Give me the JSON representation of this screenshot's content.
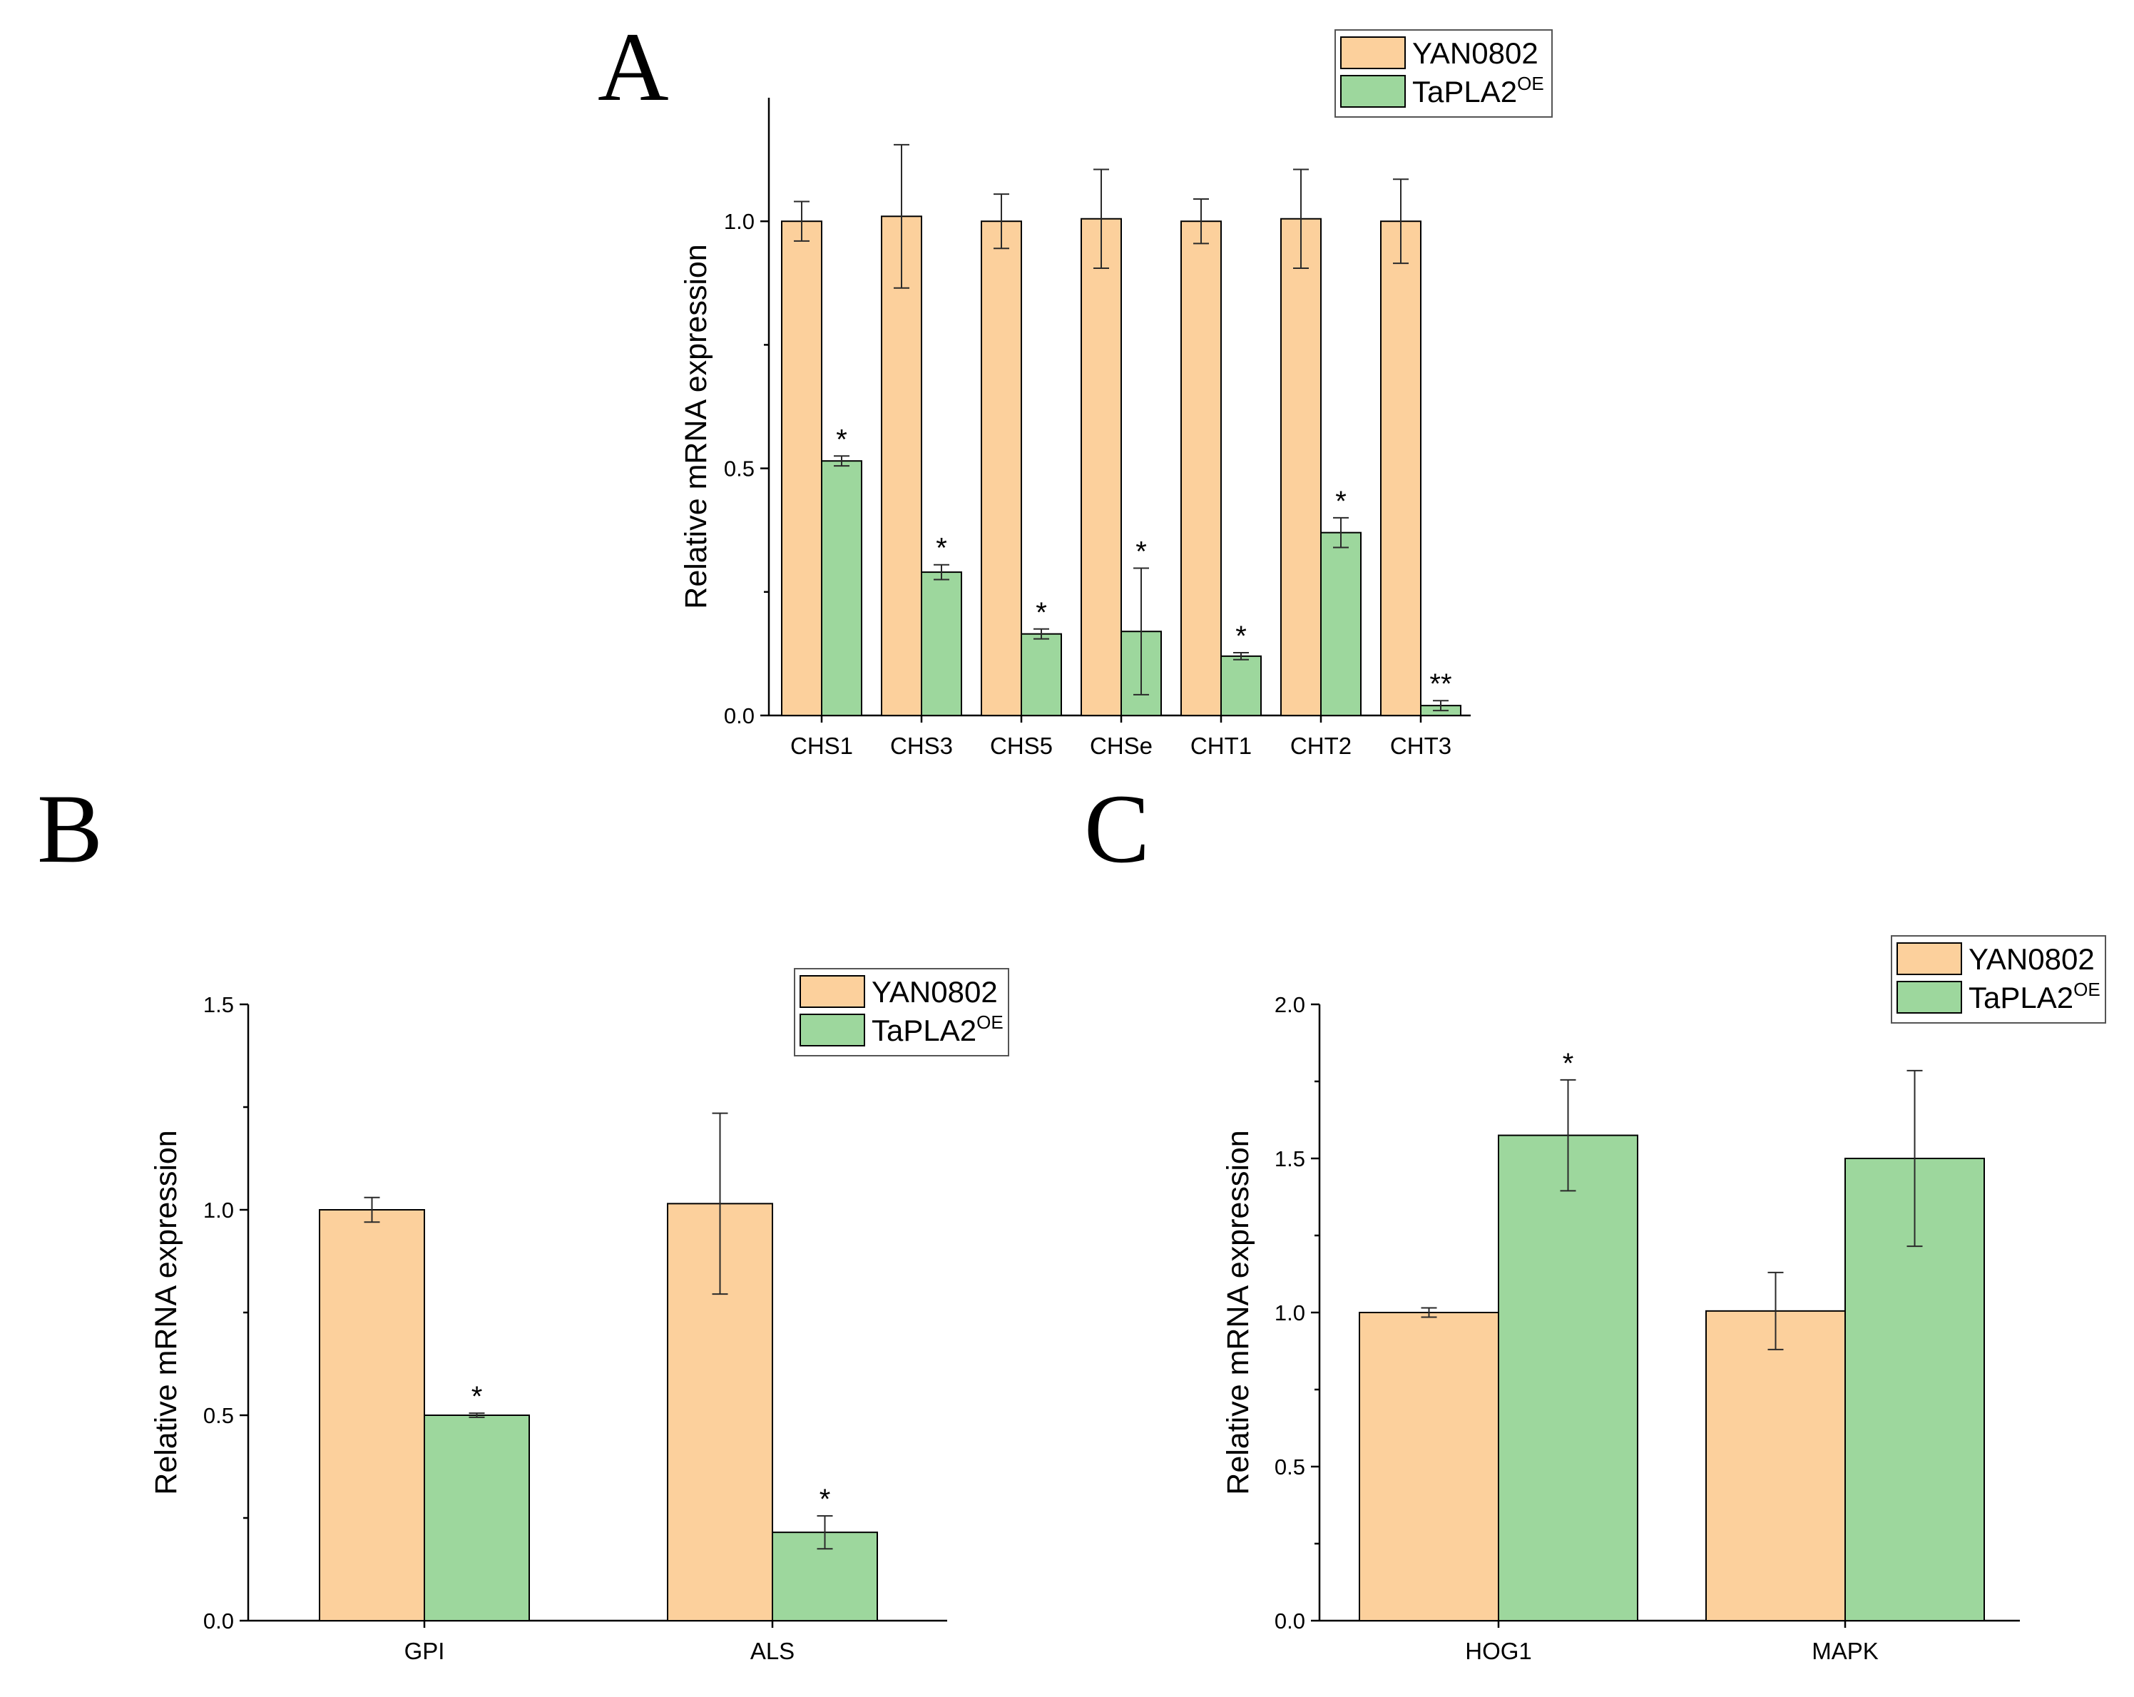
{
  "colors": {
    "YAN0802": "#fcd09c",
    "TaPLA2OE": "#9dd79d",
    "axis": "#000000"
  },
  "chart_data": [
    {
      "panel": "A",
      "type": "bar",
      "ylabel": "Relative mRNA expression",
      "xlabel": "",
      "ylim": [
        0,
        1.25
      ],
      "yticks": [
        0.0,
        0.5,
        1.0
      ],
      "ytick_labels": [
        "0.0",
        "0.5",
        "1.0"
      ],
      "categories": [
        "CHS1",
        "CHS3",
        "CHS5",
        "CHSe",
        "CHT1",
        "CHT2",
        "CHT3"
      ],
      "legend": {
        "position": "top-right",
        "entries": [
          {
            "label": "YAN0802",
            "sup": ""
          },
          {
            "label": "TaPLA2",
            "sup": "OE"
          }
        ]
      },
      "series": [
        {
          "name": "YAN0802",
          "values": [
            1.0,
            1.01,
            1.0,
            1.005,
            1.0,
            1.005,
            1.0
          ],
          "errors": [
            0.04,
            0.145,
            0.055,
            0.1,
            0.045,
            0.1,
            0.085
          ],
          "significance": [
            "",
            "",
            "",
            "",
            "",
            "",
            ""
          ]
        },
        {
          "name": "TaPLA2OE",
          "values": [
            0.515,
            0.29,
            0.165,
            0.17,
            0.12,
            0.37,
            0.02
          ],
          "errors": [
            0.01,
            0.015,
            0.01,
            0.128,
            0.007,
            0.03,
            0.01
          ],
          "significance": [
            "*",
            "*",
            "*",
            "*",
            "*",
            "*",
            "**"
          ]
        }
      ]
    },
    {
      "panel": "B",
      "type": "bar",
      "ylabel": "Relative mRNA expression",
      "xlabel": "",
      "ylim": [
        0,
        1.5
      ],
      "yticks": [
        0.0,
        0.5,
        1.0,
        1.5
      ],
      "ytick_labels": [
        "0.0",
        "0.5",
        "1.0",
        "1.5"
      ],
      "categories": [
        "GPI",
        "ALS"
      ],
      "legend": {
        "position": "top-right",
        "entries": [
          {
            "label": "YAN0802",
            "sup": ""
          },
          {
            "label": "TaPLA2",
            "sup": "OE"
          }
        ]
      },
      "series": [
        {
          "name": "YAN0802",
          "values": [
            1.0,
            1.015
          ],
          "errors": [
            0.03,
            0.22
          ],
          "significance": [
            "",
            ""
          ]
        },
        {
          "name": "TaPLA2OE",
          "values": [
            0.5,
            0.215
          ],
          "errors": [
            0.005,
            0.04
          ],
          "significance": [
            "*",
            "*"
          ]
        }
      ]
    },
    {
      "panel": "C",
      "type": "bar",
      "ylabel": "Relative mRNA expression",
      "xlabel": "",
      "ylim": [
        0,
        2.0
      ],
      "yticks": [
        0.0,
        0.5,
        1.0,
        1.5,
        2.0
      ],
      "ytick_labels": [
        "0.0",
        "0.5",
        "1.0",
        "1.5",
        "2.0"
      ],
      "categories": [
        "HOG1",
        "MAPK"
      ],
      "legend": {
        "position": "top-right",
        "entries": [
          {
            "label": "YAN0802",
            "sup": ""
          },
          {
            "label": "TaPLA2",
            "sup": "OE"
          }
        ]
      },
      "series": [
        {
          "name": "YAN0802",
          "values": [
            1.0,
            1.005
          ],
          "errors": [
            0.015,
            0.125
          ],
          "significance": [
            "",
            ""
          ]
        },
        {
          "name": "TaPLA2OE",
          "values": [
            1.575,
            1.5
          ],
          "errors": [
            0.18,
            0.285
          ],
          "significance": [
            "*",
            ""
          ]
        }
      ]
    }
  ]
}
